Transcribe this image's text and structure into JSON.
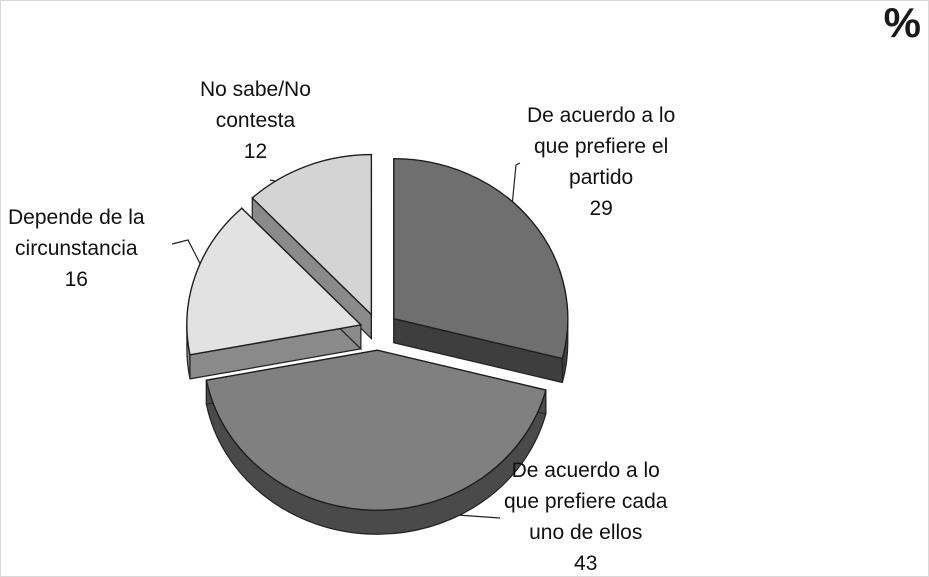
{
  "unit_label": "%",
  "chart_data": {
    "type": "pie",
    "style": "3d-exploded",
    "slices": [
      {
        "label_lines": [
          "De acuerdo a lo",
          "que prefiere el",
          "partido"
        ],
        "value": 29,
        "color": "#6f6f6f",
        "side_color": "#3e3e3e"
      },
      {
        "label_lines": [
          "De acuerdo a lo",
          "que prefiere cada",
          "uno de ellos"
        ],
        "value": 43,
        "color": "#808080",
        "side_color": "#4a4a4a"
      },
      {
        "label_lines": [
          "Depende de la",
          "circunstancia"
        ],
        "value": 16,
        "color": "#e2e2e2",
        "side_color": "#8a8a8a"
      },
      {
        "label_lines": [
          "No sabe/No",
          "contesta"
        ],
        "value": 12,
        "color": "#d4d4d4",
        "side_color": "#8a8a8a"
      }
    ]
  }
}
